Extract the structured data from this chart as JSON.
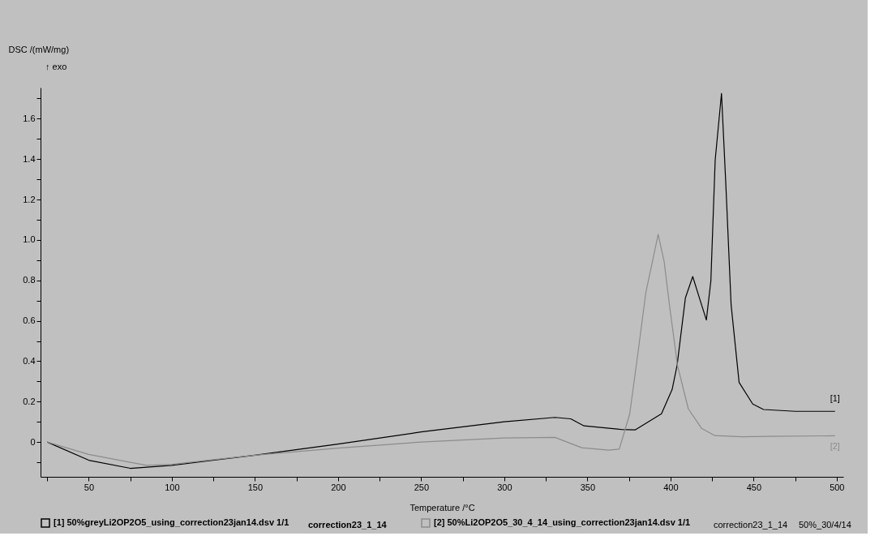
{
  "chart_data": {
    "type": "line",
    "xlabel": "Temperature /°C",
    "ylabel": "DSC /(mW/mg)",
    "xlim": [
      21,
      504
    ],
    "ylim": [
      -0.172,
      1.754
    ],
    "xticks": [
      {
        "value": 25,
        "label": null
      },
      50,
      {
        "value": 75,
        "label": null
      },
      100,
      {
        "value": 125,
        "label": null
      },
      150,
      {
        "value": 175,
        "label": null
      },
      200,
      {
        "value": 225,
        "label": null
      },
      250,
      {
        "value": 275,
        "label": null
      },
      300,
      {
        "value": 325,
        "label": null
      },
      350,
      {
        "value": 375,
        "label": null
      },
      400,
      {
        "value": 425,
        "label": null
      },
      450,
      {
        "value": 475,
        "label": null
      },
      500
    ],
    "yticks": [
      {
        "value": -0.1,
        "label": null
      },
      0,
      {
        "value": 0.1,
        "label": null
      },
      0.2,
      {
        "value": 0.3,
        "label": null
      },
      0.4,
      {
        "value": 0.5,
        "label": null
      },
      0.6,
      {
        "value": 0.7,
        "label": null
      },
      0.8,
      {
        "value": 0.9,
        "label": null
      },
      {
        "value": 1,
        "label": "1.0"
      },
      {
        "value": 1.1,
        "label": null
      },
      1.2,
      {
        "value": 1.3,
        "label": null
      },
      1.4,
      {
        "value": 1.5,
        "label": null
      },
      1.6,
      {
        "value": 1.7,
        "label": null
      }
    ],
    "grid": false,
    "legend": "bottom",
    "marker": "none",
    "line_style": "solid",
    "series": [
      {
        "name": "[1] 50%greyLi2OP2O5_using_correction23jan14.dsv 1/1",
        "color": "#000000",
        "x": [
          25,
          50,
          75,
          100,
          150,
          200,
          250,
          300,
          330.5,
          340,
          348,
          370.5,
          378.7,
          394.6,
          401,
          404,
          409,
          413.4,
          417.9,
          421.6,
          424.3,
          426.9,
          430.7,
          433.3,
          436.5,
          441.3,
          449.5,
          456,
          475,
          499
        ],
        "values": [
          0,
          -0.09,
          -0.13,
          -0.115,
          -0.065,
          -0.01,
          0.05,
          0.1,
          0.122,
          0.115,
          0.08,
          0.062,
          0.06,
          0.14,
          0.26,
          0.38,
          0.714,
          0.819,
          0.7,
          0.604,
          0.797,
          1.395,
          1.725,
          1.277,
          0.678,
          0.295,
          0.188,
          0.161,
          0.152,
          0.152
        ]
      },
      {
        "name": "[2] 50%Li2OP2O5_30_4_14_using_correction23jan14.dsv 1/1",
        "color": "#8c8c8c",
        "x": [
          25,
          50,
          75,
          85,
          100,
          150,
          200,
          250,
          300,
          330.5,
          346.6,
          362.8,
          369.2,
          375.5,
          380.4,
          385.2,
          392.6,
          396.2,
          399.4,
          404.2,
          410.7,
          418.7,
          426.7,
          442.8,
          458.9,
          499
        ],
        "values": [
          0,
          -0.061,
          -0.1,
          -0.115,
          -0.11,
          -0.065,
          -0.03,
          0,
          0.02,
          0.023,
          -0.028,
          -0.04,
          -0.035,
          0.14,
          0.439,
          0.74,
          1.027,
          0.893,
          0.678,
          0.38,
          0.165,
          0.068,
          0.032,
          0.026,
          0.028,
          0.031
        ]
      }
    ],
    "annotations": [
      "↑ exo",
      "[1]",
      "[2]",
      "correction23_1_14",
      "correction23_1_14",
      "50%_30/4/14"
    ]
  }
}
